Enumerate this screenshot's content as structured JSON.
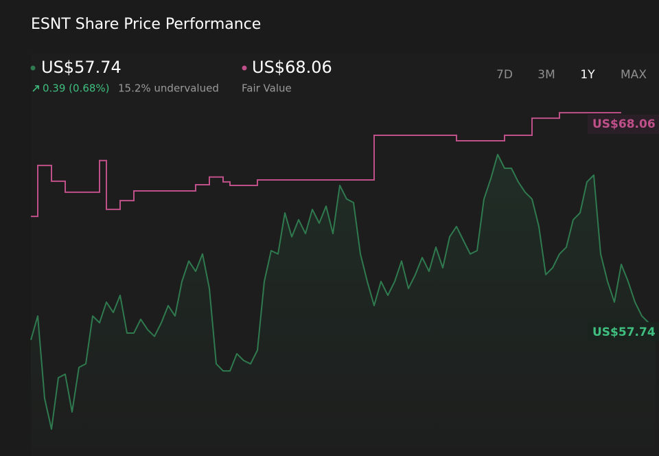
{
  "chart_data": {
    "type": "line",
    "title": "ESNT Share Price Performance",
    "summary": {
      "price": "US$57.74",
      "change": "0.39 (0.68%)",
      "valuation": "15.2% undervalued",
      "fair_value": "US$68.06",
      "fair_value_label": "Fair Value"
    },
    "ranges": [
      "7D",
      "3M",
      "1Y",
      "MAX"
    ],
    "active_range": "1Y",
    "ylim": [
      52.5,
      68.5
    ],
    "series": [
      {
        "color": "#2f7a4f",
        "style": "line",
        "values": [
          57.72,
          58.81,
          55.06,
          53.66,
          56.0,
          56.16,
          54.44,
          56.47,
          56.63,
          58.81,
          58.5,
          59.44,
          58.97,
          59.75,
          58.03,
          58.03,
          58.66,
          58.19,
          57.88,
          58.5,
          59.28,
          58.81,
          60.38,
          61.31,
          60.84,
          61.63,
          60.06,
          56.63,
          56.31,
          56.31,
          57.09,
          56.78,
          56.63,
          57.25,
          60.38,
          61.78,
          61.63,
          63.5,
          62.41,
          63.19,
          62.56,
          63.66,
          63.03,
          63.81,
          62.56,
          64.75,
          64.13,
          63.97,
          61.63,
          60.38,
          59.28,
          60.38,
          59.75,
          60.38,
          61.31,
          60.06,
          60.69,
          61.47,
          60.84,
          61.94,
          61.0,
          62.41,
          62.88,
          62.25,
          61.63,
          61.78,
          64.13,
          65.06,
          66.16,
          65.53,
          65.53,
          64.91,
          64.44,
          64.13,
          62.88,
          60.69,
          61.0,
          61.63,
          61.94,
          63.19,
          63.5,
          64.91,
          65.22,
          61.63,
          60.38,
          59.44,
          61.16,
          60.38,
          59.44,
          58.81,
          58.5,
          57.74
        ]
      },
      {
        "color": "#c0508a",
        "style": "step",
        "values": [
          63.34,
          65.66,
          65.66,
          64.94,
          64.94,
          64.44,
          64.44,
          64.44,
          64.44,
          64.44,
          65.88,
          63.66,
          63.66,
          64.06,
          64.06,
          64.5,
          64.5,
          64.5,
          64.5,
          64.5,
          64.5,
          64.5,
          64.5,
          64.5,
          64.78,
          64.78,
          65.13,
          65.13,
          64.91,
          64.75,
          64.75,
          64.75,
          64.75,
          65.0,
          65.0,
          65.0,
          65.0,
          65.0,
          65.0,
          65.0,
          65.0,
          65.0,
          65.0,
          65.0,
          65.0,
          65.0,
          65.0,
          65.0,
          65.0,
          65.0,
          67.03,
          67.03,
          67.03,
          67.03,
          67.03,
          67.03,
          67.03,
          67.03,
          67.03,
          67.03,
          67.03,
          67.03,
          66.78,
          66.78,
          66.78,
          66.78,
          66.78,
          66.78,
          66.78,
          67.03,
          67.03,
          67.03,
          67.03,
          67.81,
          67.81,
          67.81,
          67.81,
          68.06,
          68.06,
          68.06,
          68.06,
          68.06,
          68.06,
          68.06,
          68.06,
          68.06,
          68.06,
          null,
          null,
          null,
          null,
          null
        ]
      }
    ]
  }
}
